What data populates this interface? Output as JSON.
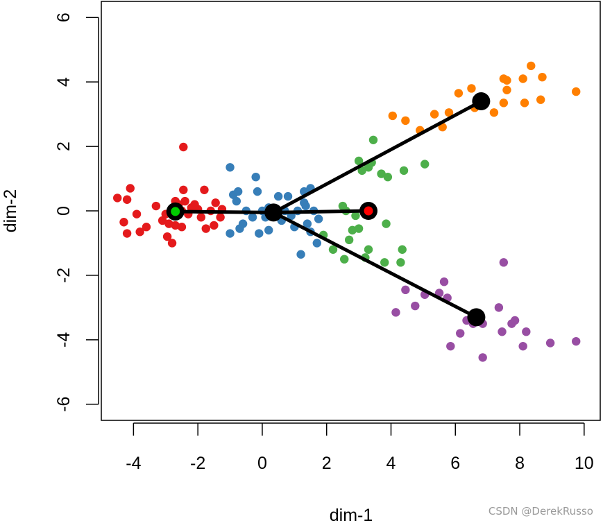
{
  "chart_data": {
    "type": "scatter",
    "xlabel": "dim-1",
    "ylabel": "dim-2",
    "xlim": [
      -5,
      10.5
    ],
    "ylim": [
      -6.5,
      6.5
    ],
    "xticks": [
      -4,
      -2,
      0,
      2,
      4,
      6,
      8,
      10
    ],
    "yticks": [
      -6,
      -4,
      -2,
      0,
      2,
      4,
      6
    ],
    "grid": false,
    "series": [
      {
        "name": "red",
        "color": "#e41a1c",
        "points": [
          [
            -4.5,
            0.4
          ],
          [
            -4.3,
            -0.35
          ],
          [
            -4.2,
            -0.7
          ],
          [
            -4.1,
            0.7
          ],
          [
            -4.2,
            0.35
          ],
          [
            -3.9,
            -0.1
          ],
          [
            -3.8,
            -0.65
          ],
          [
            -3.6,
            -0.5
          ],
          [
            -3.3,
            0.15
          ],
          [
            -3.1,
            -0.3
          ],
          [
            -2.95,
            -0.8
          ],
          [
            -2.9,
            -0.4
          ],
          [
            -2.8,
            -1.0
          ],
          [
            -2.7,
            0.3
          ],
          [
            -2.6,
            0.2
          ],
          [
            -2.5,
            -0.5
          ],
          [
            -2.5,
            0.0
          ],
          [
            -2.45,
            0.65
          ],
          [
            -2.45,
            1.98
          ],
          [
            -2.4,
            0.3
          ],
          [
            -2.3,
            -0.1
          ],
          [
            -2.2,
            0.1
          ],
          [
            -2.1,
            0.2
          ],
          [
            -2.0,
            0.05
          ],
          [
            -1.9,
            -0.2
          ],
          [
            -1.8,
            0.65
          ],
          [
            -1.75,
            -0.55
          ],
          [
            -1.6,
            0.0
          ],
          [
            -1.5,
            -0.45
          ],
          [
            -1.45,
            0.25
          ],
          [
            -1.3,
            -0.2
          ],
          [
            -1.25,
            0.05
          ],
          [
            -2.7,
            -0.45
          ],
          [
            -3.0,
            -0.1
          ]
        ]
      },
      {
        "name": "blue",
        "color": "#377eb8",
        "points": [
          [
            -1.0,
            1.35
          ],
          [
            -1.0,
            -0.7
          ],
          [
            -0.9,
            0.5
          ],
          [
            -0.8,
            0.3
          ],
          [
            -0.75,
            0.6
          ],
          [
            -0.7,
            -0.55
          ],
          [
            -0.6,
            -0.4
          ],
          [
            -0.5,
            0.0
          ],
          [
            -0.3,
            -0.2
          ],
          [
            -0.2,
            1.05
          ],
          [
            -0.15,
            0.6
          ],
          [
            -0.1,
            -0.7
          ],
          [
            0.0,
            0.0
          ],
          [
            0.1,
            -0.2
          ],
          [
            0.2,
            -0.6
          ],
          [
            0.35,
            0.0
          ],
          [
            0.5,
            0.45
          ],
          [
            0.6,
            -0.3
          ],
          [
            0.7,
            0.0
          ],
          [
            0.8,
            0.45
          ],
          [
            1.0,
            -0.5
          ],
          [
            1.1,
            0.0
          ],
          [
            1.2,
            -1.35
          ],
          [
            1.3,
            0.6
          ],
          [
            1.35,
            0.15
          ],
          [
            1.4,
            -0.4
          ],
          [
            1.5,
            0.7
          ],
          [
            1.5,
            -0.65
          ],
          [
            1.6,
            0.0
          ],
          [
            1.7,
            -1.0
          ],
          [
            1.75,
            -0.25
          ],
          [
            1.3,
            0.25
          ],
          [
            0.9,
            -0.15
          ],
          [
            0.2,
            0.1
          ]
        ]
      },
      {
        "name": "green",
        "color": "#4daf4a",
        "points": [
          [
            1.9,
            -0.75
          ],
          [
            2.2,
            -1.2
          ],
          [
            2.5,
            0.15
          ],
          [
            2.55,
            -1.5
          ],
          [
            2.6,
            0.0
          ],
          [
            2.7,
            -0.9
          ],
          [
            2.8,
            -0.6
          ],
          [
            2.9,
            -0.15
          ],
          [
            3.0,
            -0.55
          ],
          [
            3.0,
            1.55
          ],
          [
            3.1,
            1.25
          ],
          [
            3.2,
            -1.45
          ],
          [
            3.3,
            -1.2
          ],
          [
            3.3,
            1.35
          ],
          [
            3.4,
            1.5
          ],
          [
            3.45,
            2.2
          ],
          [
            3.7,
            1.15
          ],
          [
            3.8,
            -1.6
          ],
          [
            3.85,
            -0.4
          ],
          [
            3.9,
            1.05
          ],
          [
            4.3,
            -1.6
          ],
          [
            4.35,
            -1.2
          ],
          [
            4.4,
            1.25
          ],
          [
            5.05,
            1.45
          ]
        ]
      },
      {
        "name": "orange",
        "color": "#ff7f00",
        "points": [
          [
            4.05,
            2.95
          ],
          [
            4.45,
            2.8
          ],
          [
            4.9,
            2.5
          ],
          [
            5.35,
            3.0
          ],
          [
            5.6,
            2.6
          ],
          [
            5.8,
            3.05
          ],
          [
            6.1,
            3.65
          ],
          [
            6.5,
            3.8
          ],
          [
            6.6,
            3.2
          ],
          [
            7.2,
            3.05
          ],
          [
            7.5,
            3.35
          ],
          [
            7.5,
            4.1
          ],
          [
            7.6,
            3.75
          ],
          [
            7.6,
            4.05
          ],
          [
            8.1,
            4.1
          ],
          [
            8.15,
            3.35
          ],
          [
            8.35,
            4.5
          ],
          [
            8.65,
            3.45
          ],
          [
            8.7,
            4.15
          ],
          [
            9.75,
            3.7
          ]
        ]
      },
      {
        "name": "purple",
        "color": "#984ea3",
        "points": [
          [
            4.15,
            -3.15
          ],
          [
            4.45,
            -2.45
          ],
          [
            4.75,
            -2.95
          ],
          [
            5.05,
            -2.6
          ],
          [
            5.5,
            -2.55
          ],
          [
            5.65,
            -2.2
          ],
          [
            5.75,
            -2.7
          ],
          [
            5.85,
            -4.2
          ],
          [
            6.15,
            -3.8
          ],
          [
            6.35,
            -3.4
          ],
          [
            6.55,
            -3.5
          ],
          [
            6.85,
            -3.5
          ],
          [
            6.85,
            -4.55
          ],
          [
            7.35,
            -3.0
          ],
          [
            7.45,
            -3.75
          ],
          [
            7.5,
            -1.6
          ],
          [
            7.75,
            -3.5
          ],
          [
            7.85,
            -3.4
          ],
          [
            8.1,
            -4.2
          ],
          [
            8.2,
            -3.75
          ],
          [
            8.95,
            -4.1
          ],
          [
            9.75,
            -4.05
          ]
        ]
      }
    ],
    "tree": {
      "color": "#000000",
      "nodes": [
        {
          "name": "root",
          "x": 0.35,
          "y": -0.05
        },
        {
          "name": "start",
          "x": -2.7,
          "y": -0.02,
          "fill": "#00cc00"
        },
        {
          "name": "end",
          "x": 3.3,
          "y": 0.0,
          "fill": "#ff0000"
        },
        {
          "name": "orange-center",
          "x": 6.8,
          "y": 3.4
        },
        {
          "name": "purple-center",
          "x": 6.65,
          "y": -3.3
        }
      ],
      "edges": [
        [
          "root",
          "start"
        ],
        [
          "root",
          "end"
        ],
        [
          "root",
          "orange-center"
        ],
        [
          "root",
          "purple-center"
        ]
      ]
    }
  },
  "watermark": "CSDN @DerekRusso"
}
